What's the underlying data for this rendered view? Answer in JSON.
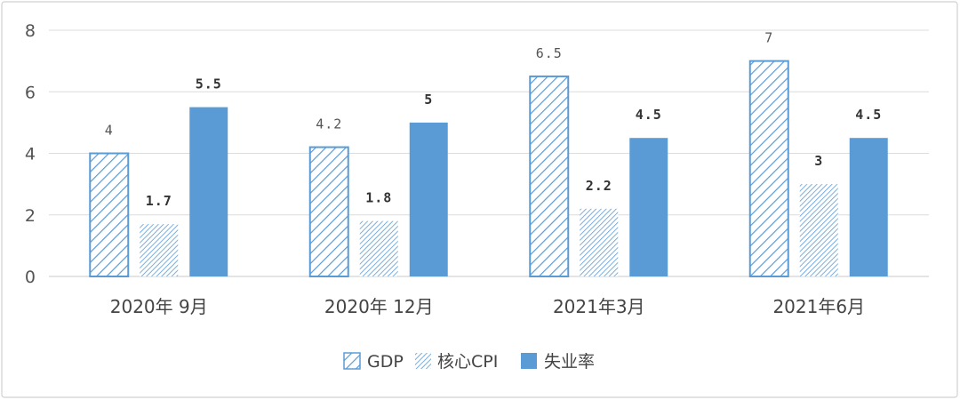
{
  "chart_data": {
    "type": "bar",
    "categories": [
      "2020年  9月",
      "2020年  12月",
      "2021年3月",
      "2021年6月"
    ],
    "series": [
      {
        "name": "GDP",
        "values": [
          4,
          4.2,
          6.5,
          7
        ],
        "labels": [
          "4",
          "4.2",
          "6.5",
          "7"
        ],
        "style": "hatch-wide",
        "color": "#5b9bd5"
      },
      {
        "name": "核心CPI",
        "values": [
          1.7,
          1.8,
          2.2,
          3
        ],
        "labels": [
          "1.7",
          "1.8",
          "2.2",
          "3"
        ],
        "style": "hatch-fine",
        "color": "#5b9bd5"
      },
      {
        "name": "失业率",
        "values": [
          5.5,
          5,
          4.5,
          4.5
        ],
        "labels": [
          "5.5",
          "5",
          "4.5",
          "4.5"
        ],
        "style": "solid",
        "color": "#5b9bd5"
      }
    ],
    "yticks": [
      "0",
      "2",
      "4",
      "6",
      "8"
    ],
    "ylim": [
      0,
      8
    ],
    "grid": true,
    "legend": "bottom-center",
    "title": "",
    "xlabel": "",
    "ylabel": ""
  }
}
